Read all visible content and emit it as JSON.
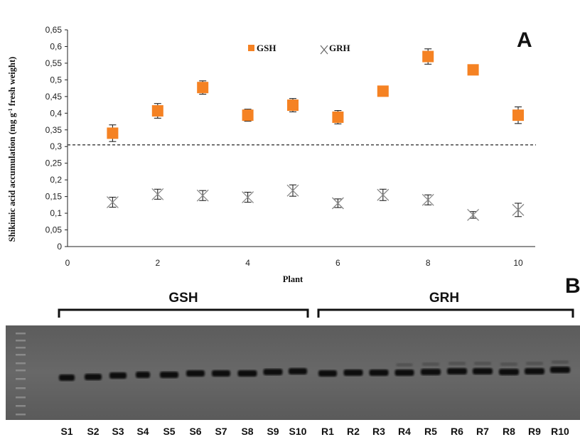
{
  "chart_data": {
    "type": "scatter",
    "panel_a_label": "A",
    "ylabel_main": "Shikimic acid accumulation  (mg g",
    "ylabel_sup": "-1",
    "ylabel_end": " fresh weight)",
    "xlabel": "Plant",
    "xlim": [
      0,
      10
    ],
    "ylim": [
      0,
      0.65
    ],
    "x_ticks": [
      "0",
      "2",
      "4",
      "6",
      "8",
      "10"
    ],
    "y_ticks": [
      "0",
      "0,05",
      "0,1",
      "0,15",
      "0,2",
      "0,25",
      "0,3",
      "0,35",
      "0,4",
      "0,45",
      "0,5",
      "0,55",
      "0,6",
      "0,65"
    ],
    "threshold": 0.305,
    "legend_position": "top",
    "series": [
      {
        "name": "GSH",
        "color": "#F58223",
        "marker": "square",
        "x": [
          1,
          2,
          3,
          4,
          5,
          6,
          7,
          8,
          9,
          10
        ],
        "y": [
          0.34,
          0.407,
          0.477,
          0.394,
          0.424,
          0.388,
          0.466,
          0.57,
          0.53,
          0.394
        ],
        "err": [
          0.025,
          0.022,
          0.02,
          0.018,
          0.02,
          0.02,
          0.015,
          0.023,
          0.01,
          0.025
        ]
      },
      {
        "name": "GRH",
        "color": "#555555",
        "marker": "x",
        "x": [
          1,
          2,
          3,
          4,
          5,
          6,
          7,
          8,
          9,
          10
        ],
        "y": [
          0.133,
          0.157,
          0.153,
          0.148,
          0.168,
          0.13,
          0.155,
          0.14,
          0.095,
          0.11
        ],
        "err": [
          0.015,
          0.015,
          0.015,
          0.015,
          0.017,
          0.013,
          0.017,
          0.015,
          0.01,
          0.02
        ]
      }
    ]
  },
  "gel": {
    "panel_b_label": "B",
    "groups": [
      "GSH",
      "GRH"
    ],
    "lanes": [
      "S1",
      "S2",
      "S3",
      "S4",
      "S5",
      "S6",
      "S7",
      "S8",
      "S9",
      "S10",
      "R1",
      "R2",
      "R3",
      "R4",
      "R5",
      "R6",
      "R7",
      "R8",
      "R9",
      "R10"
    ]
  }
}
